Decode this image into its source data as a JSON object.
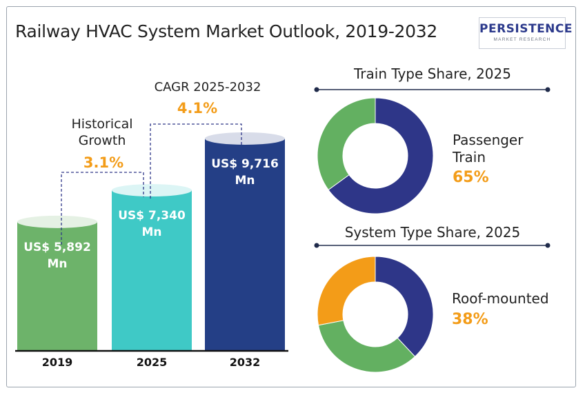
{
  "title": "Railway HVAC System Market Outlook, 2019-2032",
  "logo": {
    "main": "PERSISTENCE",
    "sub": "MARKET RESEARCH"
  },
  "colors": {
    "bar2019": "#6db36a",
    "bar2025": "#3fc9c6",
    "bar2032": "#243f86",
    "passenger": "#2e3688",
    "other_train": "#63b061",
    "roof": "#2e3688",
    "green": "#63b061",
    "orange": "#f39c18",
    "accent": "#f39c18",
    "line": "#1f2a4a"
  },
  "chart_data": [
    {
      "type": "bar",
      "categories": [
        "2019",
        "2025",
        "2032"
      ],
      "values": [
        5892,
        7340,
        9716
      ],
      "value_labels": [
        "US$ 5,892 Mn",
        "US$ 7,340 Mn",
        "US$ 9,716 Mn"
      ],
      "annotations": [
        {
          "label": "Historical Growth",
          "value": "3.1%"
        },
        {
          "label": "CAGR 2025-2032",
          "value": "4.1%"
        }
      ]
    },
    {
      "type": "pie",
      "title": "Train Type Share, 2025",
      "slices": [
        {
          "name": "Passenger Train",
          "value": 65,
          "label": "65%"
        },
        {
          "name": "",
          "value": 35
        }
      ]
    },
    {
      "type": "pie",
      "title": "System Type Share, 2025",
      "slices": [
        {
          "name": "Roof-mounted",
          "value": 38,
          "label": "38%"
        },
        {
          "name": "",
          "value": 34
        },
        {
          "name": "",
          "value": 28
        }
      ]
    }
  ]
}
